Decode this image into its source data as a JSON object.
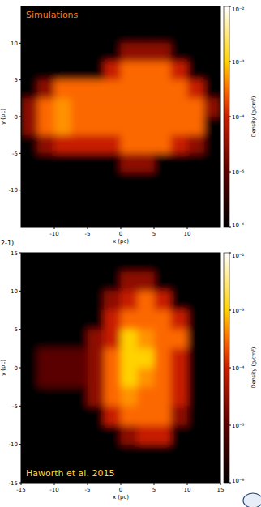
{
  "chart_data": [
    {
      "type": "heatmap",
      "annotation": "Simulations",
      "xlabel": "x (pc)",
      "ylabel": "y (pc)",
      "xlim": [
        -15,
        15
      ],
      "ylim": [
        -15,
        15
      ],
      "xticks": [
        -10,
        -5,
        0,
        5,
        10
      ],
      "yticks": [
        10,
        5,
        0,
        -5,
        -10
      ],
      "x_edges": [
        -15,
        -12.5,
        -10,
        -7.5,
        -5,
        -2.5,
        0,
        2.5,
        5,
        7.5,
        10,
        12.5,
        15
      ],
      "y_edges": [
        15,
        12.5,
        10,
        7.5,
        5,
        2.5,
        0,
        -2.5,
        -5,
        -7.5,
        -10,
        -12.5,
        -15
      ],
      "cells": [
        [
          1e-06,
          1e-06,
          1e-06,
          1e-06,
          1e-06,
          1e-06,
          1e-06,
          1e-06,
          1e-06,
          1e-06,
          1e-06,
          1e-06
        ],
        [
          1e-06,
          1e-06,
          1e-06,
          1e-06,
          1e-06,
          1e-06,
          1e-06,
          1e-06,
          1e-06,
          1e-06,
          1e-06,
          1e-06
        ],
        [
          1e-06,
          1e-06,
          1e-06,
          1e-06,
          1e-06,
          1e-06,
          3e-05,
          3e-05,
          3e-05,
          1e-06,
          1e-06,
          1e-06
        ],
        [
          1e-06,
          1e-06,
          1e-06,
          1e-06,
          1e-06,
          0.0001,
          0.0003,
          0.0003,
          0.0003,
          0.0001,
          1e-06,
          1e-06
        ],
        [
          1e-06,
          3e-05,
          0.0003,
          0.0003,
          0.0003,
          0.0003,
          0.0003,
          0.0003,
          0.0003,
          0.0003,
          0.0001,
          1e-06
        ],
        [
          3e-05,
          0.0003,
          0.0005,
          0.0003,
          0.0003,
          0.0003,
          0.0003,
          0.0003,
          0.0003,
          0.0003,
          0.0003,
          3e-05
        ],
        [
          3e-05,
          0.0003,
          0.0005,
          0.0003,
          0.0003,
          0.0003,
          0.0003,
          0.0003,
          0.0003,
          0.0003,
          0.0003,
          1e-06
        ],
        [
          1e-06,
          3e-05,
          0.0001,
          0.0001,
          0.0001,
          0.0001,
          0.0003,
          0.0003,
          0.0003,
          0.0001,
          3e-05,
          1e-06
        ],
        [
          1e-06,
          1e-06,
          1e-06,
          1e-06,
          1e-06,
          1e-06,
          3e-05,
          3e-05,
          1e-06,
          1e-06,
          1e-06,
          1e-06
        ],
        [
          1e-06,
          1e-06,
          1e-06,
          1e-06,
          1e-06,
          1e-06,
          1e-06,
          1e-06,
          1e-06,
          1e-06,
          1e-06,
          1e-06
        ],
        [
          1e-06,
          1e-06,
          1e-06,
          1e-06,
          1e-06,
          1e-06,
          1e-06,
          1e-06,
          1e-06,
          1e-06,
          1e-06,
          1e-06
        ],
        [
          1e-06,
          1e-06,
          1e-06,
          1e-06,
          1e-06,
          1e-06,
          1e-06,
          1e-06,
          1e-06,
          1e-06,
          1e-06,
          1e-06
        ]
      ],
      "colorbar": {
        "label": "Density (g/cm³)",
        "range": [
          1e-06,
          0.01
        ],
        "log": true,
        "ticks": [
          {
            "value": 0.01,
            "label": "10⁻²"
          },
          {
            "value": 0.001,
            "label": "10⁻³"
          },
          {
            "value": 0.0001,
            "label": "10⁻⁴"
          },
          {
            "value": 1e-05,
            "label": "10⁻⁵"
          },
          {
            "value": 1e-06,
            "label": "10⁻⁶"
          }
        ]
      }
    },
    {
      "type": "heatmap",
      "annotation": "Haworth et al. 2015",
      "xlabel": "x (pc)",
      "ylabel": "y (pc)",
      "xlim": [
        -15,
        15
      ],
      "ylim": [
        -15,
        15
      ],
      "xticks": [
        -15,
        -10,
        -5,
        0,
        5,
        10,
        15
      ],
      "yticks": [
        15,
        10,
        5,
        0,
        -5,
        -10,
        -15
      ],
      "x_edges": [
        -15,
        -12.5,
        -10,
        -7.5,
        -5,
        -2.5,
        0,
        2.5,
        5,
        7.5,
        10,
        12.5,
        15
      ],
      "y_edges": [
        15,
        12.5,
        10,
        7.5,
        5,
        2.5,
        0,
        -2.5,
        -5,
        -7.5,
        -10,
        -12.5,
        -15
      ],
      "cells": [
        [
          1e-06,
          1e-06,
          1e-06,
          1e-06,
          1e-06,
          1e-06,
          1e-06,
          1e-06,
          1e-06,
          1e-06,
          1e-06,
          1e-06
        ],
        [
          1e-06,
          1e-06,
          1e-06,
          1e-06,
          1e-06,
          1e-06,
          3e-05,
          3e-05,
          1e-06,
          1e-06,
          1e-06,
          1e-06
        ],
        [
          1e-06,
          1e-06,
          1e-06,
          1e-06,
          1e-06,
          3e-05,
          0.0001,
          0.0003,
          0.0001,
          1e-06,
          1e-06,
          1e-06
        ],
        [
          1e-06,
          1e-06,
          1e-06,
          1e-06,
          1e-06,
          0.0001,
          0.0003,
          0.0003,
          0.0003,
          0.0001,
          1e-06,
          1e-06
        ],
        [
          1e-06,
          1e-06,
          1e-06,
          1e-06,
          3e-05,
          0.0001,
          0.001,
          0.0005,
          0.0003,
          0.0003,
          1e-06,
          1e-06
        ],
        [
          1e-06,
          1e-05,
          1e-05,
          1e-05,
          3e-05,
          0.0003,
          0.001,
          0.001,
          0.0003,
          0.0001,
          1e-06,
          1e-06
        ],
        [
          1e-06,
          1e-05,
          1e-05,
          1e-05,
          3e-05,
          0.0003,
          0.001,
          0.0005,
          0.0003,
          0.0001,
          1e-06,
          1e-06
        ],
        [
          1e-06,
          1e-06,
          1e-06,
          1e-06,
          3e-05,
          0.0003,
          0.0005,
          0.0003,
          0.0003,
          0.0001,
          1e-06,
          1e-06
        ],
        [
          1e-06,
          1e-06,
          1e-06,
          1e-06,
          1e-06,
          0.0001,
          0.0003,
          0.0003,
          0.0003,
          3e-05,
          1e-06,
          1e-06
        ],
        [
          1e-06,
          1e-06,
          1e-06,
          1e-06,
          1e-06,
          1e-06,
          3e-05,
          0.0001,
          0.0001,
          1e-06,
          1e-06,
          1e-06
        ],
        [
          1e-06,
          1e-06,
          1e-06,
          1e-06,
          1e-06,
          1e-06,
          1e-06,
          1e-06,
          1e-06,
          1e-06,
          1e-06,
          1e-06
        ],
        [
          1e-06,
          1e-06,
          1e-06,
          1e-06,
          1e-06,
          1e-06,
          1e-06,
          1e-06,
          1e-06,
          1e-06,
          1e-06,
          1e-06
        ]
      ],
      "colorbar": {
        "label": "Density (g/cm³)",
        "range": [
          1e-06,
          0.01
        ],
        "log": true,
        "ticks": [
          {
            "value": 0.01,
            "label": "10⁻²"
          },
          {
            "value": 0.001,
            "label": "10⁻³"
          },
          {
            "value": 0.0001,
            "label": "10⁻⁴"
          },
          {
            "value": 1e-05,
            "label": "10⁻⁵"
          },
          {
            "value": 1e-06,
            "label": "10⁻⁶"
          }
        ]
      }
    }
  ],
  "side_text": "2-1)"
}
